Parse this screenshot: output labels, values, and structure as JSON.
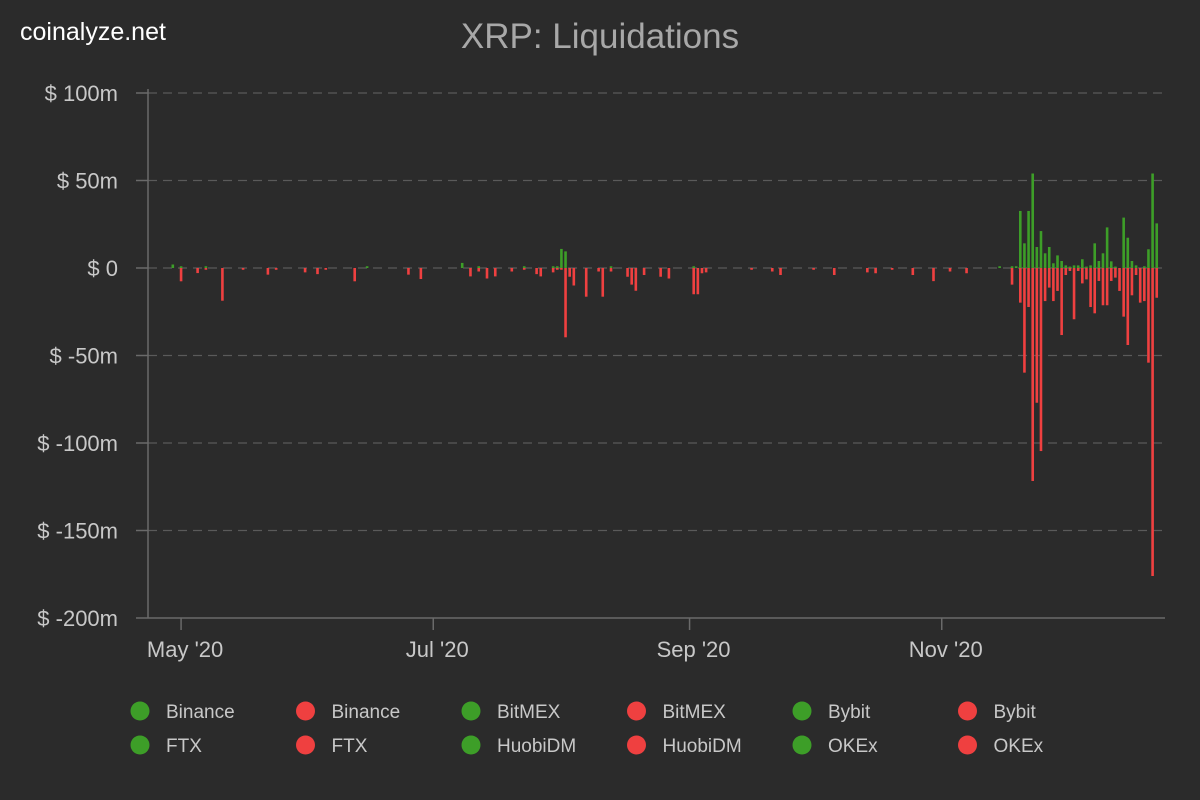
{
  "brand": "coinalyze.net",
  "chart_data": {
    "type": "bar",
    "title": "XRP: Liquidations",
    "xlabel": "",
    "ylabel": "",
    "ylim": [
      -200,
      100
    ],
    "yunit": "$ m",
    "yticks": [
      100,
      50,
      0,
      -50,
      -100,
      -150,
      -200
    ],
    "ytick_labels": [
      "$ 100m",
      "$ 50m",
      "$ 0",
      "$ -50m",
      "$ -100m",
      "$ -150m",
      "$ -200m"
    ],
    "xlim": [
      "2020-04-23",
      "2020-12-25"
    ],
    "xticks": [
      "2020-05-01",
      "2020-07-01",
      "2020-09-01",
      "2020-11-01"
    ],
    "xtick_labels": [
      "May '20",
      "Jul '20",
      "Sep '20",
      "Nov '20"
    ],
    "grid": true,
    "legend_position": "bottom",
    "colors": {
      "positive": "#3d9e28",
      "negative": "#ef4040"
    },
    "x": [
      "2020-04-29",
      "2020-05-01",
      "2020-05-05",
      "2020-05-07",
      "2020-05-11",
      "2020-05-16",
      "2020-05-22",
      "2020-05-24",
      "2020-05-31",
      "2020-06-03",
      "2020-06-05",
      "2020-06-12",
      "2020-06-15",
      "2020-06-25",
      "2020-06-28",
      "2020-07-08",
      "2020-07-10",
      "2020-07-12",
      "2020-07-14",
      "2020-07-16",
      "2020-07-20",
      "2020-07-23",
      "2020-07-26",
      "2020-07-27",
      "2020-07-30",
      "2020-07-31",
      "2020-08-01",
      "2020-08-02",
      "2020-08-03",
      "2020-08-04",
      "2020-08-07",
      "2020-08-10",
      "2020-08-11",
      "2020-08-13",
      "2020-08-17",
      "2020-08-18",
      "2020-08-19",
      "2020-08-21",
      "2020-08-25",
      "2020-08-27",
      "2020-09-02",
      "2020-09-03",
      "2020-09-04",
      "2020-09-05",
      "2020-09-16",
      "2020-09-21",
      "2020-09-23",
      "2020-10-01",
      "2020-10-06",
      "2020-10-14",
      "2020-10-16",
      "2020-10-20",
      "2020-10-25",
      "2020-10-30",
      "2020-11-03",
      "2020-11-07",
      "2020-11-15",
      "2020-11-18",
      "2020-11-19",
      "2020-11-20",
      "2020-11-21",
      "2020-11-22",
      "2020-11-23",
      "2020-11-24",
      "2020-11-25",
      "2020-11-26",
      "2020-11-27",
      "2020-11-28",
      "2020-11-29",
      "2020-11-30",
      "2020-12-01",
      "2020-12-02",
      "2020-12-03",
      "2020-12-04",
      "2020-12-05",
      "2020-12-06",
      "2020-12-07",
      "2020-12-08",
      "2020-12-09",
      "2020-12-10",
      "2020-12-11",
      "2020-12-12",
      "2020-12-13",
      "2020-12-14",
      "2020-12-15",
      "2020-12-16",
      "2020-12-17",
      "2020-12-18",
      "2020-12-19",
      "2020-12-20",
      "2020-12-21",
      "2020-12-22",
      "2020-12-23"
    ],
    "positive": [
      2,
      1,
      0,
      1,
      0,
      0,
      0,
      0,
      0,
      0,
      0,
      0,
      1,
      0,
      0,
      2.9,
      0,
      1,
      0,
      0,
      0,
      1,
      0,
      0,
      1,
      1,
      10.9,
      9.5,
      0,
      0,
      0,
      0,
      0,
      1,
      0,
      0,
      0,
      0,
      0,
      0,
      1,
      0,
      0,
      0,
      0,
      0,
      0,
      0,
      0,
      0,
      0,
      0,
      0,
      0,
      0,
      0,
      1,
      1,
      1,
      32.6,
      14.1,
      32.6,
      54,
      12,
      21.1,
      8.4,
      12,
      2.7,
      7.2,
      4,
      1.5,
      0.8,
      1.5,
      1.5,
      5,
      0.8,
      1.5,
      14.1,
      4,
      8.4,
      23.2,
      3.8,
      0.8,
      0,
      28.8,
      17.3,
      4,
      1.5,
      0,
      1,
      10.7,
      54,
      25.5
    ],
    "negative": [
      0,
      -7.6,
      -2.9,
      -1,
      -18.7,
      -1,
      -3.8,
      -1,
      -2.5,
      -3.5,
      -1,
      -7.6,
      0,
      -3.8,
      -6.3,
      0,
      -4.8,
      -2,
      -6,
      -4.8,
      -2,
      -1,
      -3.5,
      -4.8,
      -2.5,
      -1,
      -1,
      -39.6,
      -5,
      -10,
      -16.4,
      -2,
      -16.4,
      -2,
      -5,
      -9.5,
      -13,
      -4,
      -5,
      -6,
      -15,
      -15,
      -3,
      -2.5,
      -1,
      -2,
      -4,
      -1,
      -4,
      -2.5,
      -3,
      -1,
      -4,
      -7.5,
      -2,
      -3,
      0,
      -9.5,
      0,
      -19.8,
      -59.8,
      -22.3,
      -121.7,
      -77,
      -104.6,
      -18.9,
      -11.2,
      -18.9,
      -13.1,
      -38.3,
      -4,
      -1.7,
      -29.3,
      -1.7,
      -8.8,
      -6.5,
      -22.3,
      -25.9,
      -7.4,
      -21.3,
      -21.3,
      -7.4,
      -5.5,
      -13.1,
      -27.8,
      -44,
      -15.6,
      -4,
      -19.8,
      -18.9,
      -54.1,
      -176,
      -17
    ]
  },
  "legend": [
    {
      "label": "Binance",
      "color": "#3d9e28"
    },
    {
      "label": "Binance",
      "color": "#ef4040"
    },
    {
      "label": "BitMEX",
      "color": "#3d9e28"
    },
    {
      "label": "BitMEX",
      "color": "#ef4040"
    },
    {
      "label": "Bybit",
      "color": "#3d9e28"
    },
    {
      "label": "Bybit",
      "color": "#ef4040"
    },
    {
      "label": "FTX",
      "color": "#3d9e28"
    },
    {
      "label": "FTX",
      "color": "#ef4040"
    },
    {
      "label": "HuobiDM",
      "color": "#3d9e28"
    },
    {
      "label": "HuobiDM",
      "color": "#ef4040"
    },
    {
      "label": "OKEx",
      "color": "#3d9e28"
    },
    {
      "label": "OKEx",
      "color": "#ef4040"
    }
  ]
}
